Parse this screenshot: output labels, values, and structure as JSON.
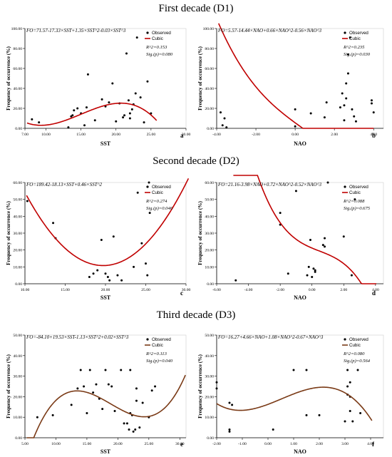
{
  "sections": [
    {
      "title": "First decade (D1)"
    },
    {
      "title": "Second decade (D2)"
    },
    {
      "title": "Third decade (D3)"
    }
  ],
  "colors": {
    "d1_curve": "#c00000",
    "d2_curve": "#c00000",
    "d3_curve": "#7a3a16",
    "points": "#000000"
  },
  "chart_data": [
    {
      "id": "a",
      "type": "scatter",
      "panel_letter": "a",
      "xlabel": "SST",
      "ylabel": "Frequency of occurrence (%)",
      "xlim": [
        7.0,
        30.0
      ],
      "ylim": [
        0,
        100
      ],
      "xticks": [
        "7.00",
        "10.00",
        "15.00",
        "20.00",
        "25.00",
        "30.00"
      ],
      "xtick_values": [
        7,
        10,
        15,
        20,
        25,
        30
      ],
      "yticks": [
        "0.00",
        "20.00",
        "40.00",
        "60.00",
        "80.00",
        "100.00"
      ],
      "ytick_values": [
        0,
        20,
        40,
        60,
        80,
        100
      ],
      "equation": "FO=71.57-17.33×SST+1.35×SST^2-0.03×SST^3",
      "r2": "R^2=0.153",
      "sig": "Sig.(p)=0.080",
      "legend": [
        "Observed",
        "Cubic"
      ],
      "x": [
        8.0,
        9.0,
        13.2,
        13.6,
        13.8,
        14.0,
        14.5,
        15.0,
        15.5,
        15.8,
        16.0,
        17.0,
        18.0,
        18.5,
        19.0,
        19.5,
        20.0,
        20.5,
        21.0,
        21.2,
        21.5,
        21.8,
        22.0,
        22.0,
        22.3,
        22.5,
        22.8,
        23.0,
        23.5,
        24.0,
        24.5,
        25.0
      ],
      "y": [
        9,
        6,
        1,
        12,
        13,
        18,
        20,
        15,
        3,
        21,
        54,
        8,
        29,
        22,
        26,
        45,
        7,
        25,
        11,
        13,
        75,
        28,
        10,
        15,
        19,
        24,
        35,
        91,
        31,
        6,
        47,
        15
      ],
      "fit": {
        "kind": "cubic",
        "coef": [
          71.57,
          -17.33,
          1.35,
          -0.03
        ],
        "range": [
          7.3,
          25.8
        ]
      }
    },
    {
      "id": "b",
      "type": "scatter",
      "panel_letter": "b",
      "xlabel": "NAO",
      "ylabel": "Frequency of occurrence (%)",
      "xlim": [
        -4.0,
        4.5
      ],
      "ylim": [
        0,
        100
      ],
      "xticks": [
        "-4.00",
        "-2.00",
        "0.00",
        "2.00",
        "4.00"
      ],
      "xtick_values": [
        -4,
        -2,
        0,
        2,
        4
      ],
      "yticks": [
        "0.00",
        "20.00",
        "40.00",
        "60.00",
        "80.00",
        "100.00"
      ],
      "ytick_values": [
        0,
        20,
        40,
        60,
        80,
        100
      ],
      "equation": "FO=5.57-14.44×NAO+0.66×NAO^2-0.56×NAO^3",
      "r2": "R^2=0.235",
      "sig": "Sig.(p)=0.030",
      "legend": [
        "Observed",
        "Cubic"
      ],
      "x": [
        -3.8,
        -3.7,
        -3.6,
        -3.5,
        0.0,
        0.0,
        0.8,
        1.5,
        1.6,
        2.3,
        2.4,
        2.5,
        2.5,
        2.6,
        2.6,
        2.7,
        2.7,
        2.8,
        2.9,
        3.0,
        3.1,
        3.9,
        3.9,
        4.0
      ],
      "y": [
        16,
        3,
        10,
        1,
        19,
        2,
        15,
        11,
        26,
        21,
        35,
        8,
        23,
        45,
        30,
        55,
        74,
        91,
        19,
        12,
        7,
        25,
        28,
        16
      ],
      "fit": {
        "kind": "cubic",
        "coef": [
          5.57,
          -14.44,
          0.66,
          -0.56
        ],
        "range": [
          -3.9,
          4.0
        ]
      }
    },
    {
      "id": "c",
      "type": "scatter",
      "panel_letter": "c",
      "xlabel": "SST",
      "ylabel": "Frequency of occurrence (%)",
      "xlim": [
        10.0,
        30.0
      ],
      "ylim": [
        0,
        60
      ],
      "xticks": [
        "10.00",
        "15.00",
        "20.00",
        "25.00",
        "30.00"
      ],
      "xtick_values": [
        10,
        15,
        20,
        25,
        30
      ],
      "yticks": [
        "0.00",
        "10.00",
        "20.00",
        "30.00",
        "40.00",
        "50.00",
        "60.00"
      ],
      "ytick_values": [
        0,
        10,
        20,
        30,
        40,
        50,
        60
      ],
      "equation": "FO=189.42-18.13×SST+0.46×SST^2",
      "r2": "R^2=0.274",
      "sig": "Sig.(p)=0.046",
      "legend": [
        "Observed",
        "Cubic"
      ],
      "x": [
        10.3,
        13.5,
        13.8,
        18.0,
        18.5,
        19.0,
        19.5,
        20.0,
        20.3,
        20.5,
        21.0,
        21.5,
        22.0,
        23.5,
        24.0,
        24.5,
        25.0,
        25.2,
        25.4,
        25.5
      ],
      "y": [
        49,
        36,
        27,
        4,
        6,
        8,
        26,
        6,
        4,
        2,
        28,
        5,
        2,
        10,
        54,
        24,
        12,
        5,
        60,
        42
      ],
      "fit": {
        "kind": "cubic",
        "coef": [
          189.42,
          -18.13,
          0.46,
          0
        ],
        "range": [
          10.2,
          30.3
        ]
      }
    },
    {
      "id": "d",
      "type": "scatter",
      "panel_letter": "d",
      "xlabel": "NAO",
      "ylabel": "Frequency of occurrence (%)",
      "xlim": [
        -6.0,
        4.5
      ],
      "ylim": [
        0,
        60
      ],
      "xticks": [
        "-6.00",
        "-4.00",
        "-2.00",
        "0.00",
        "2.00",
        "4.00"
      ],
      "xtick_values": [
        -6,
        -4,
        -2,
        0,
        2,
        4
      ],
      "yticks": [
        "0.00",
        "10.00",
        "20.00",
        "30.00",
        "40.00",
        "50.00",
        "60.00"
      ],
      "ytick_values": [
        0,
        10,
        20,
        30,
        40,
        50,
        60
      ],
      "equation": "FO=21.16-3.98×NAO+0.72×NAO^2-0.52×NAO^3",
      "r2": "R^2=0.088",
      "sig": "Sig.(p)=0.675",
      "legend": [
        "Observed",
        "Cubic"
      ],
      "x": [
        -4.8,
        -2.0,
        -2.0,
        -1.5,
        -1.0,
        -0.3,
        -0.2,
        -0.1,
        0.0,
        0.1,
        0.2,
        0.2,
        0.7,
        0.8,
        0.8,
        1.0,
        2.0,
        2.5,
        2.7
      ],
      "y": [
        2,
        35,
        42,
        6,
        55,
        5,
        10,
        26,
        4,
        9,
        8,
        7,
        23,
        22,
        27,
        60,
        28,
        5,
        50
      ],
      "fit": {
        "kind": "cubic",
        "coef": [
          21.16,
          -3.98,
          0.72,
          -0.52
        ],
        "range": [
          -4.95,
          4.05
        ]
      }
    },
    {
      "id": "e",
      "type": "scatter",
      "panel_letter": "e",
      "xlabel": "SST",
      "ylabel": "Frequency of occurrence (%)",
      "xlim": [
        5.0,
        31.0
      ],
      "ylim": [
        0,
        50
      ],
      "xticks": [
        "5.00",
        "10.00",
        "15.00",
        "20.00",
        "25.00",
        "30.00"
      ],
      "xtick_values": [
        5,
        10,
        15,
        20,
        25,
        30
      ],
      "yticks": [
        "0.00",
        "10.00",
        "20.00",
        "30.00",
        "40.00",
        "50.00"
      ],
      "ytick_values": [
        0,
        10,
        20,
        30,
        40,
        50
      ],
      "equation": "FO=-84.10+19.53×SST-1.13×SST^2+0.02×SST^3",
      "r2": "R^2=0.113",
      "sig": "Sig.(p)=0.040",
      "legend": [
        "Observed",
        "Cubic"
      ],
      "x": [
        7.0,
        9.5,
        12.5,
        13.5,
        14.0,
        14.5,
        15.0,
        15.5,
        16.0,
        16.5,
        17.0,
        17.5,
        18.0,
        18.5,
        19.0,
        19.5,
        20.5,
        21.0,
        21.5,
        21.8,
        22.0,
        22.0,
        22.3,
        22.5,
        22.8,
        23.0,
        23.0,
        23.5,
        24.0,
        25.0,
        25.5,
        26.0
      ],
      "y": [
        10,
        11,
        16,
        24,
        33,
        25,
        12,
        33,
        22,
        26,
        19,
        14,
        33,
        26,
        25,
        13,
        33,
        7,
        7,
        4,
        12,
        33,
        11,
        3,
        4,
        24,
        18,
        5,
        17,
        10,
        23,
        25
      ],
      "fit": {
        "kind": "cubic",
        "coef": [
          -84.1,
          19.53,
          -1.13,
          0.02
        ],
        "range": [
          5.3,
          30.9
        ]
      }
    },
    {
      "id": "f",
      "type": "scatter",
      "panel_letter": "f",
      "xlabel": "NAO",
      "ylabel": "Frequency of occurrence (%)",
      "xlim": [
        -2.0,
        4.5
      ],
      "ylim": [
        0,
        50
      ],
      "xticks": [
        "-2.00",
        "-1.00",
        "0.00",
        "1.00",
        "2.00",
        "3.00",
        "4.00"
      ],
      "xtick_values": [
        -2,
        -1,
        0,
        1,
        2,
        3,
        4
      ],
      "yticks": [
        "0.00",
        "10.00",
        "20.00",
        "30.00",
        "40.00",
        "50.00"
      ],
      "ytick_values": [
        0,
        10,
        20,
        30,
        40,
        50
      ],
      "equation": "FO=16.27+4.66×NAO+1.08×NAO^2-0.67×NAO^3",
      "r2": "R^2=0.080",
      "sig": "Sig.(p)=0.564",
      "legend": [
        "Observed",
        "Cubic"
      ],
      "x": [
        -2.0,
        -2.0,
        -1.5,
        -1.5,
        -1.5,
        -1.4,
        0.2,
        1.0,
        1.5,
        1.5,
        2.0,
        3.0,
        3.1,
        3.1,
        3.1,
        3.2,
        3.2,
        3.2,
        3.3,
        3.5,
        3.6
      ],
      "y": [
        24,
        27,
        17,
        4,
        3,
        16,
        4,
        33,
        11,
        33,
        11,
        8,
        21,
        33,
        25,
        20,
        27,
        13,
        8,
        33,
        12
      ],
      "fit": {
        "kind": "cubic",
        "coef": [
          16.27,
          4.66,
          1.08,
          -0.67
        ],
        "range": [
          -2.0,
          4.05
        ]
      }
    }
  ]
}
